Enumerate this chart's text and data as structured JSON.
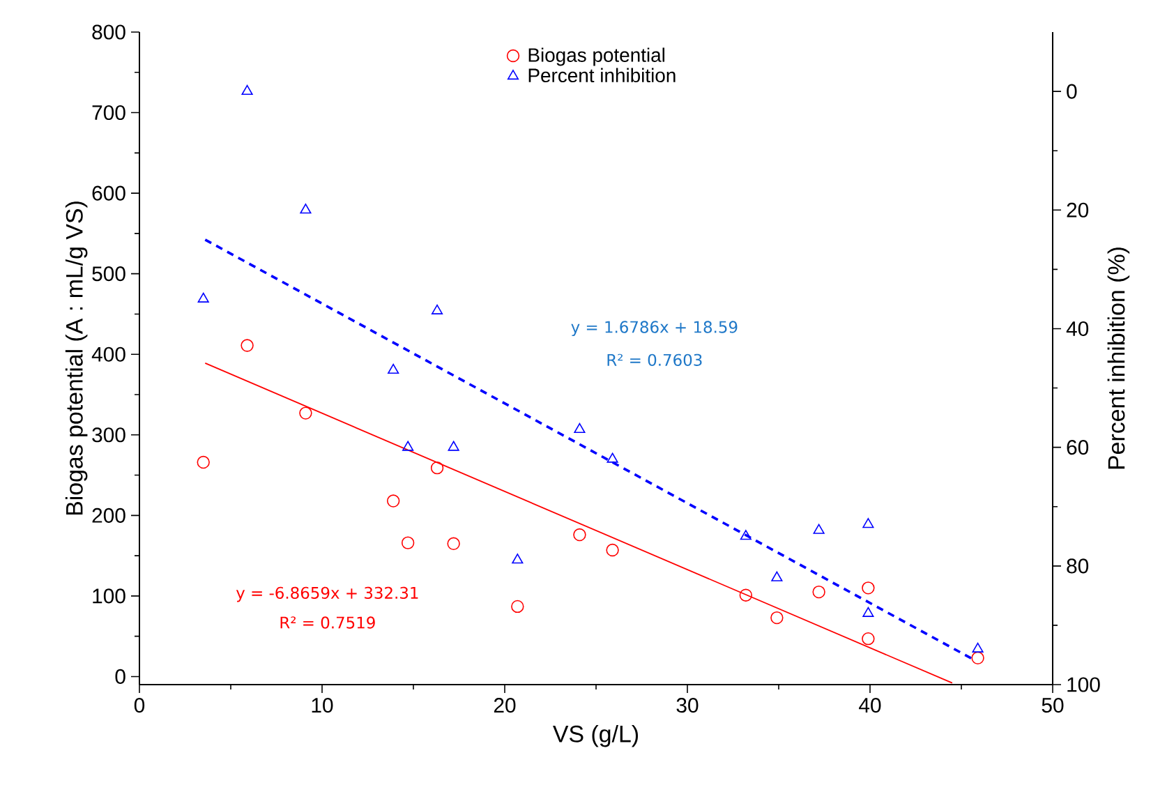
{
  "chart_data": {
    "type": "scatter",
    "xlabel": "VS (g/L)",
    "ylabel": "Biogas potential (A : mL/g VS)",
    "y2label": "Percent inhibition (%)",
    "xlim": [
      0,
      50
    ],
    "xticks": [
      0,
      10,
      20,
      30,
      40,
      50
    ],
    "ylim": [
      -10,
      800
    ],
    "yticks": [
      0,
      100,
      200,
      300,
      400,
      500,
      600,
      700,
      800
    ],
    "y2lim": [
      100,
      -10
    ],
    "y2ticks": [
      0,
      20,
      40,
      60,
      80,
      100
    ],
    "legend": "top",
    "grid": false,
    "series": [
      {
        "name": "Biogas potential",
        "marker": "circle",
        "color": "#ff0000",
        "x": [
          3.5,
          5.9,
          9.1,
          13.9,
          14.7,
          16.3,
          17.2,
          20.7,
          24.1,
          25.9,
          33.2,
          34.9,
          37.2,
          39.9,
          39.9,
          45.9
        ],
        "values": [
          266,
          411,
          327,
          218,
          166,
          259,
          165,
          87,
          176,
          157,
          101,
          73,
          105,
          110,
          47,
          23
        ]
      },
      {
        "name": "Percent inhibition",
        "marker": "triangle",
        "color": "#0000ff",
        "axis": "y2",
        "x": [
          5.9,
          9.1,
          3.5,
          16.3,
          13.9,
          14.7,
          17.2,
          20.7,
          24.1,
          25.9,
          33.2,
          34.9,
          37.2,
          39.9,
          39.9,
          45.9
        ],
        "values": [
          0,
          20,
          35,
          37,
          47,
          60,
          60,
          79,
          57,
          62,
          75,
          82,
          74,
          73,
          88,
          94
        ]
      },
      {
        "type": "line",
        "line_style": "solid",
        "color": "#ff0000",
        "x": [
          3.6,
          44.5
        ],
        "values": [
          389,
          -8
        ]
      },
      {
        "type": "line",
        "line_style": "dashed",
        "color": "#0000ff",
        "axis": "y2",
        "x": [
          3.6,
          45.8
        ],
        "values": [
          25,
          96
        ]
      }
    ],
    "annotations": [
      "y = 1.6786x + 18.59",
      "R² = 0.7603",
      "y = -6.8659x + 332.31",
      "R² = 0.7519"
    ]
  }
}
